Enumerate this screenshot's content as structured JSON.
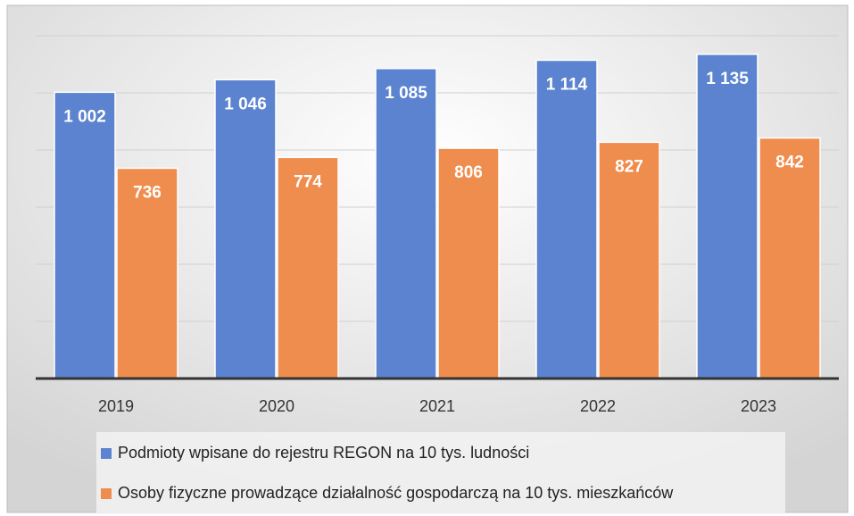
{
  "chart_data": {
    "type": "bar",
    "categories": [
      "2019",
      "2020",
      "2021",
      "2022",
      "2023"
    ],
    "series": [
      {
        "name": "Podmioty wpisane do rejestru REGON na 10 tys. ludności",
        "color": "#5b83cf",
        "values": [
          1002,
          1046,
          1085,
          1114,
          1135
        ],
        "value_labels": [
          "1 002",
          "1 046",
          "1 085",
          "1 114",
          "1 135"
        ]
      },
      {
        "name": "Osoby fizyczne prowadzące działalność gospodarczą na 10 tys. mieszkańców",
        "color": "#ef8d4e",
        "values": [
          736,
          774,
          806,
          827,
          842
        ]
      }
    ],
    "ylim": [
      0,
      1200
    ],
    "yticks": [
      0,
      200,
      400,
      600,
      800,
      1000,
      1200
    ],
    "grid": true,
    "legend": "bottom"
  }
}
